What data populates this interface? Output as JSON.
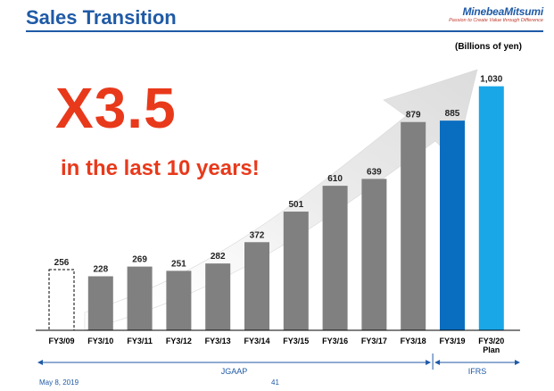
{
  "header": {
    "title": "Sales Transition",
    "logo_name": "MinebeaMitsumi",
    "logo_tagline": "Passion to Create Value through Difference"
  },
  "headline": {
    "multiplier": "X3.5",
    "subtitle": "in the last 10 years!"
  },
  "footer": {
    "date": "May 8, 2019",
    "page": "41"
  },
  "colors": {
    "title": "#1f5aa6",
    "headline": "#e8391b",
    "bar_jgaap": "#808080",
    "bar_ifrs": "#0a6ec0",
    "bar_plan": "#1aa7e8",
    "arrow": "#e8e8e8"
  },
  "chart_data": {
    "type": "bar",
    "unit_label": "(Billions of yen)",
    "categories": [
      "FY3/09",
      "FY3/10",
      "FY3/11",
      "FY3/12",
      "FY3/13",
      "FY3/14",
      "FY3/15",
      "FY3/16",
      "FY3/17",
      "FY3/18",
      "FY3/19",
      "FY3/20 Plan"
    ],
    "values": [
      256,
      228,
      269,
      251,
      282,
      372,
      501,
      610,
      639,
      879,
      885,
      1030
    ],
    "value_labels": [
      "256",
      "228",
      "269",
      "251",
      "282",
      "372",
      "501",
      "610",
      "639",
      "879",
      "885",
      "1,030"
    ],
    "bar_styles": [
      "dashed-outline",
      "jgaap",
      "jgaap",
      "jgaap",
      "jgaap",
      "jgaap",
      "jgaap",
      "jgaap",
      "jgaap",
      "jgaap",
      "ifrs",
      "plan"
    ],
    "periods": [
      {
        "name": "JGAAP",
        "from": "FY3/09",
        "to": "FY3/18"
      },
      {
        "name": "IFRS",
        "from": "FY3/19",
        "to": "FY3/20 Plan"
      }
    ],
    "ylim": [
      0,
      1100
    ],
    "grid": false,
    "xlabel": "",
    "ylabel": ""
  }
}
